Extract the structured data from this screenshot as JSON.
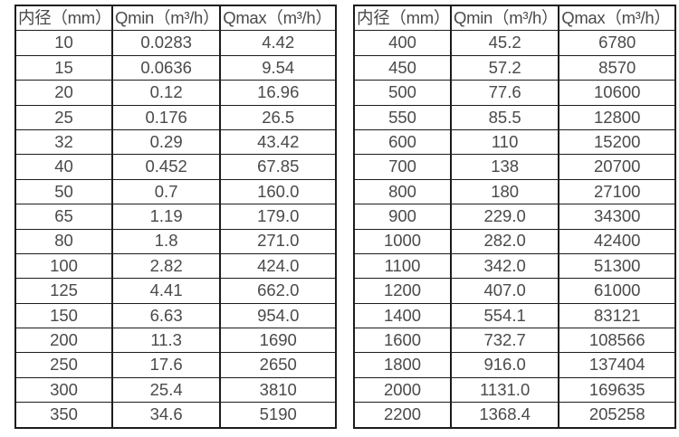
{
  "page": {
    "background_color": "#ffffff",
    "text_color": "#4a4a4a",
    "border_color": "#1c1c1c"
  },
  "tables": [
    {
      "title": "small-diameter-flow-ranges",
      "headers": [
        "内径（mm）",
        "Qmin（m³/h）",
        "Qmax（m³/h）"
      ],
      "rows": [
        [
          "10",
          "0.0283",
          "4.42"
        ],
        [
          "15",
          "0.0636",
          "9.54"
        ],
        [
          "20",
          "0.12",
          "16.96"
        ],
        [
          "25",
          "0.176",
          "26.5"
        ],
        [
          "32",
          "0.29",
          "43.42"
        ],
        [
          "40",
          "0.452",
          "67.85"
        ],
        [
          "50",
          "0.7",
          "160.0"
        ],
        [
          "65",
          "1.19",
          "179.0"
        ],
        [
          "80",
          "1.8",
          "271.0"
        ],
        [
          "100",
          "2.82",
          "424.0"
        ],
        [
          "125",
          "4.41",
          "662.0"
        ],
        [
          "150",
          "6.63",
          "954.0"
        ],
        [
          "200",
          "11.3",
          "1690"
        ],
        [
          "250",
          "17.6",
          "2650"
        ],
        [
          "300",
          "25.4",
          "3810"
        ],
        [
          "350",
          "34.6",
          "5190"
        ]
      ]
    },
    {
      "title": "large-diameter-flow-ranges",
      "headers": [
        "内径（mm）",
        "Qmin（m³/h）",
        "Qmax（m³/h）"
      ],
      "rows": [
        [
          "400",
          "45.2",
          "6780"
        ],
        [
          "450",
          "57.2",
          "8570"
        ],
        [
          "500",
          "77.6",
          "10600"
        ],
        [
          "550",
          "85.5",
          "12800"
        ],
        [
          "600",
          "110",
          "15200"
        ],
        [
          "700",
          "138",
          "20700"
        ],
        [
          "800",
          "180",
          "27100"
        ],
        [
          "900",
          "229.0",
          "34300"
        ],
        [
          "1000",
          "282.0",
          "42400"
        ],
        [
          "1100",
          "342.0",
          "51300"
        ],
        [
          "1200",
          "407.0",
          "61000"
        ],
        [
          "1400",
          "554.1",
          "83121"
        ],
        [
          "1600",
          "732.7",
          "108566"
        ],
        [
          "1800",
          "916.0",
          "137404"
        ],
        [
          "2000",
          "1131.0",
          "169635"
        ],
        [
          "2200",
          "1368.4",
          "205258"
        ]
      ]
    }
  ]
}
